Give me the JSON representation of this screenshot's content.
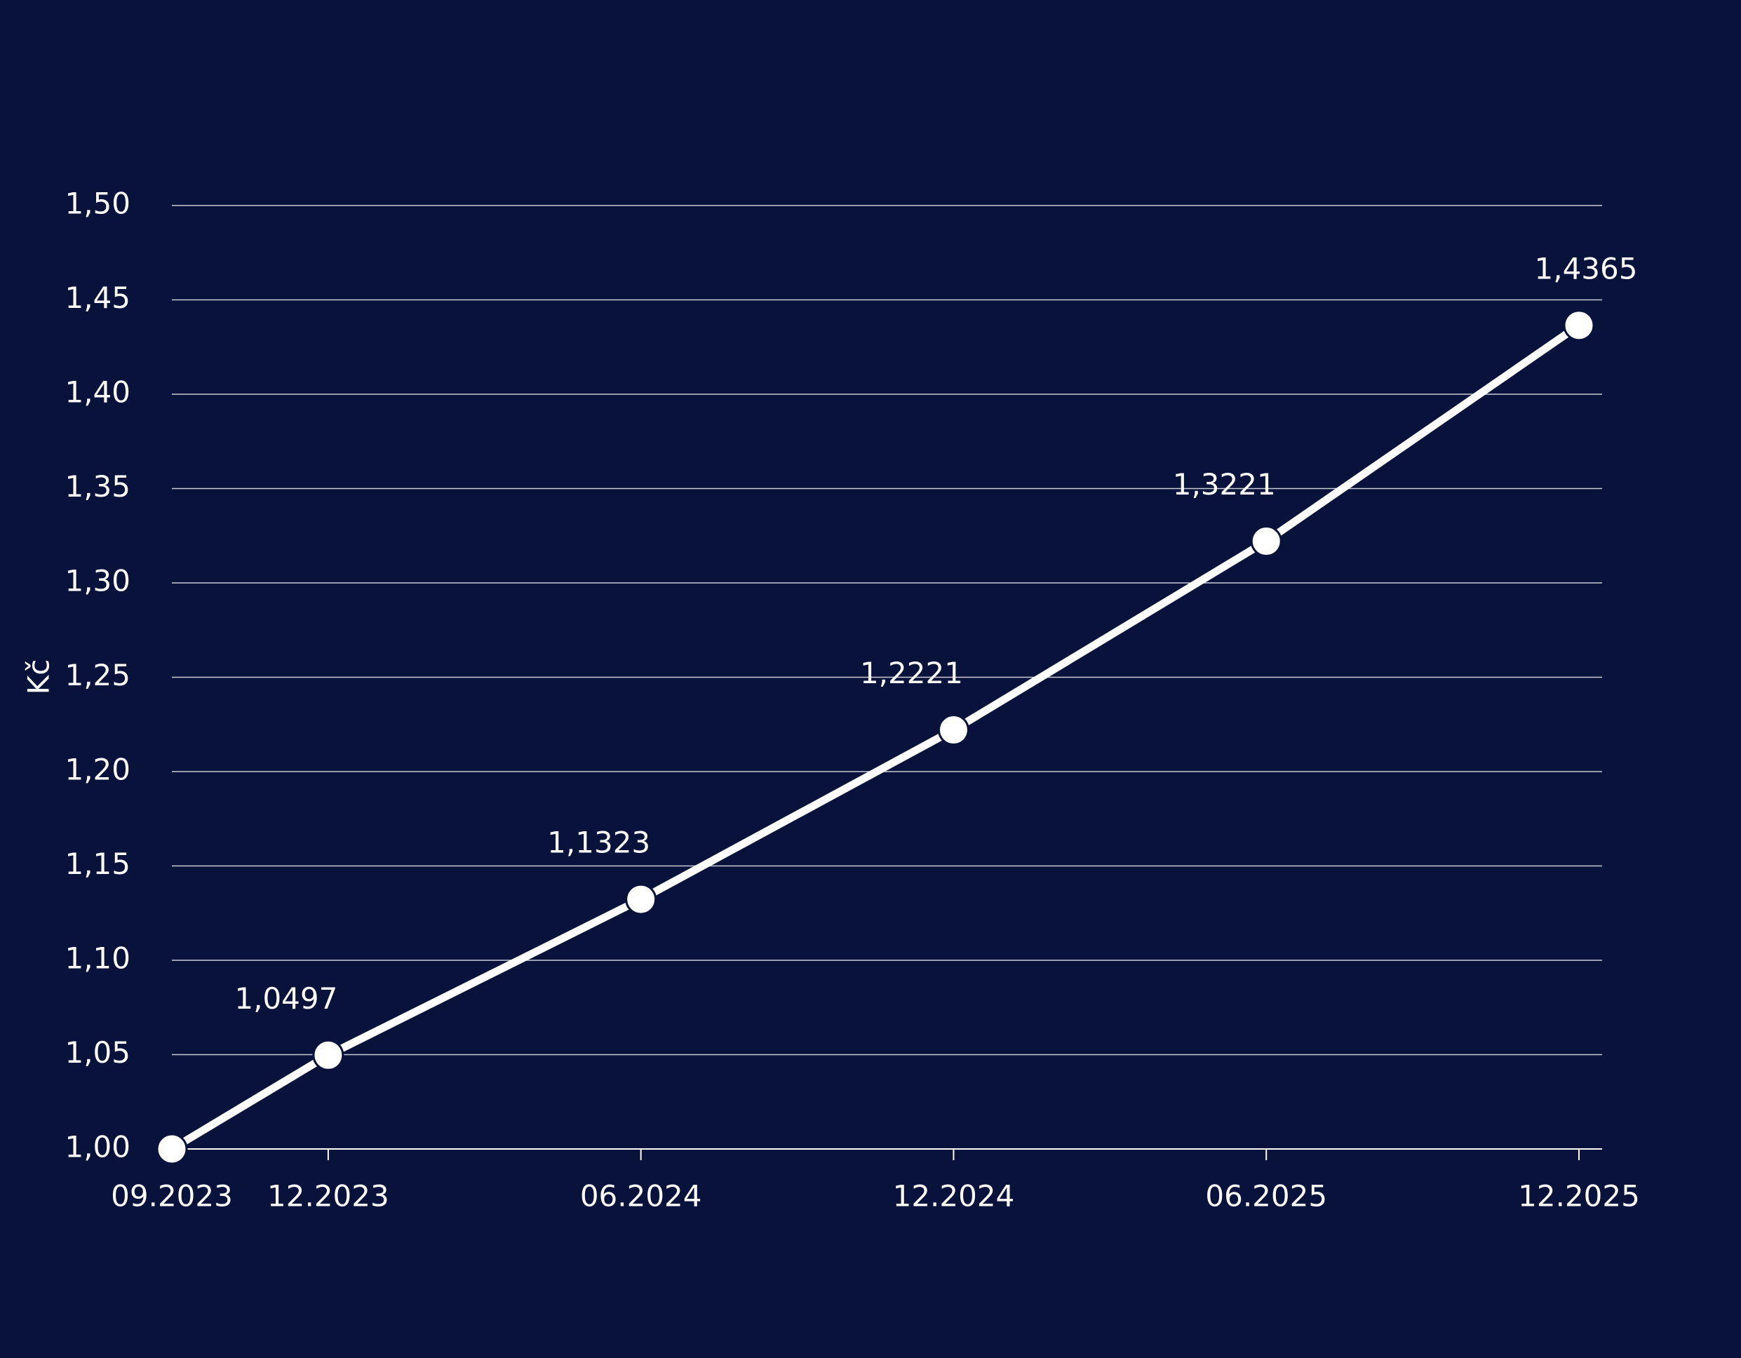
{
  "chart_data": {
    "type": "line",
    "y_label": "Kč",
    "x": [
      "09.2023",
      "12.2023",
      "06.2024",
      "12.2024",
      "06.2025",
      "12.2025"
    ],
    "series": [
      {
        "color": "#ffffff",
        "values": [
          1.0,
          1.0497,
          1.1323,
          1.2221,
          1.3221,
          1.4365
        ],
        "value_labels": [
          null,
          "1,0497",
          "1,1323",
          "1,2221",
          "1,3221",
          "1,4365"
        ]
      }
    ],
    "xlim": [
      "09.2023",
      "12.2025"
    ],
    "xticks": [
      "09.2023",
      "12.2023",
      "06.2024",
      "12.2024",
      "06.2025",
      "12.2025"
    ],
    "ylim": [
      1.0,
      1.5
    ],
    "yticks": [
      {
        "value": 1.0,
        "label": "1,00"
      },
      {
        "value": 1.05,
        "label": "1,05"
      },
      {
        "value": 1.1,
        "label": "1,10"
      },
      {
        "value": 1.15,
        "label": "1,15"
      },
      {
        "value": 1.2,
        "label": "1,20"
      },
      {
        "value": 1.25,
        "label": "1,25"
      },
      {
        "value": 1.3,
        "label": "1,30"
      },
      {
        "value": 1.35,
        "label": "1,35"
      },
      {
        "value": 1.4,
        "label": "1,40"
      },
      {
        "value": 1.45,
        "label": "1,45"
      },
      {
        "value": 1.5,
        "label": "1,50"
      }
    ],
    "grid": true
  }
}
